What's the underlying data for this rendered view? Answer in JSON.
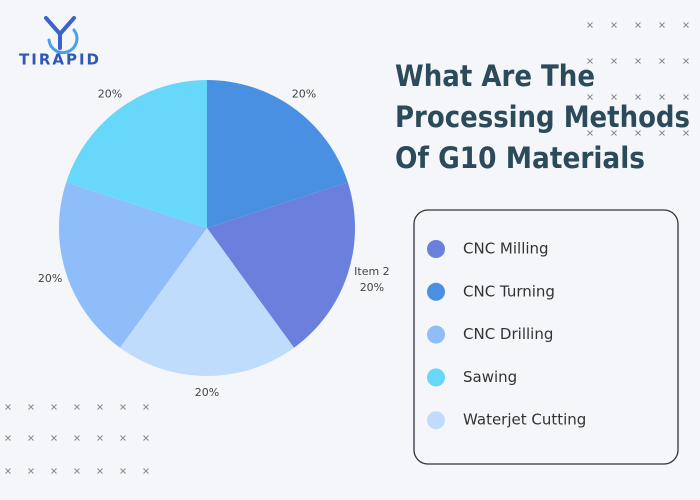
{
  "logo": "TIRAPID",
  "chart_data": {
    "type": "pie",
    "title": [
      "What Are The",
      "Processing Methods",
      "Of G10 Materials"
    ],
    "categories": [
      null,
      "Item 2",
      null,
      null,
      null
    ],
    "values": [
      20,
      20,
      20,
      20,
      20
    ],
    "value_labels": [
      "20%",
      "20%",
      "20%",
      "20%",
      "20%"
    ],
    "colors": [
      "#4a90e2",
      "#6b7fdc",
      "#bfdcfd",
      "#8fbdf9",
      "#67d8fa"
    ],
    "legend": [
      {
        "name": "CNC Milling",
        "color": "#6b7fdc"
      },
      {
        "name": "CNC Turning",
        "color": "#4a90e2"
      },
      {
        "name": "CNC Drilling",
        "color": "#8fbdf9"
      },
      {
        "name": "Sawing",
        "color": "#67d8fa"
      },
      {
        "name": "Waterjet Cutting",
        "color": "#bfdcfd"
      }
    ]
  }
}
